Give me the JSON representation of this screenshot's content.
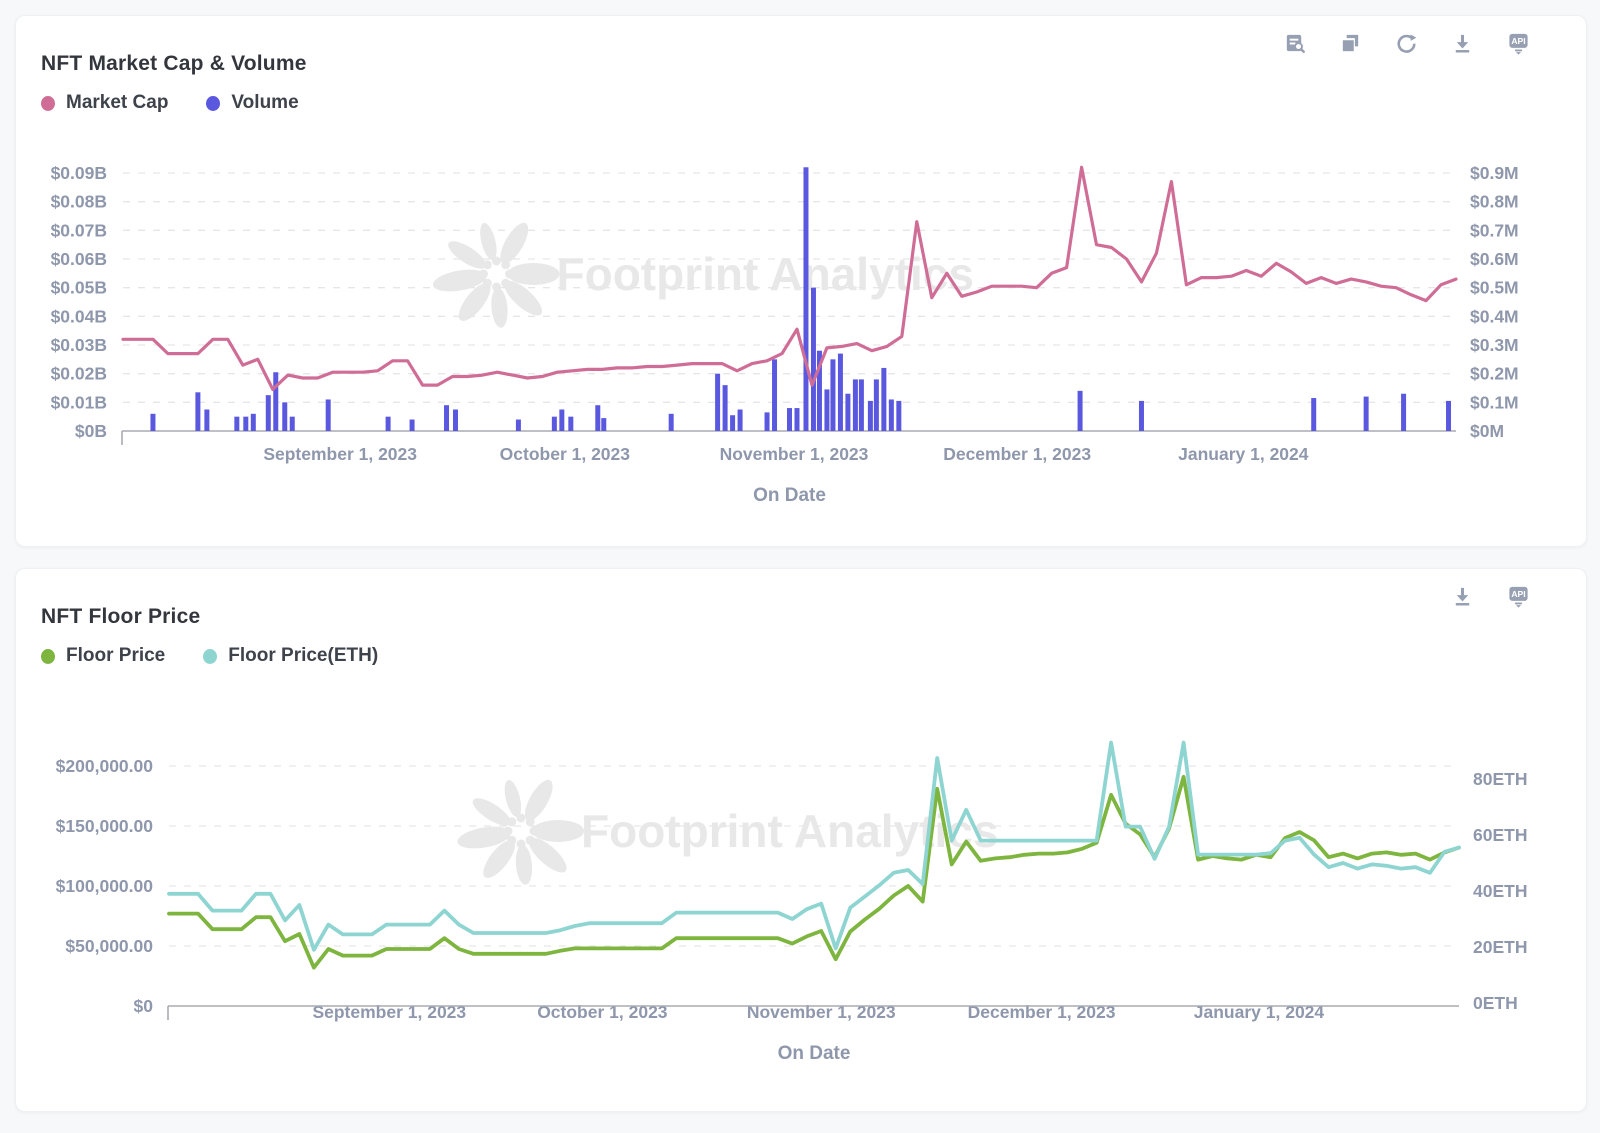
{
  "watermark": {
    "text": "Footprint Analytics"
  },
  "toolbar": {
    "api_label": "API",
    "chart1_icons": [
      "query-data",
      "duplicate",
      "refresh",
      "download",
      "api"
    ],
    "chart2_icons": [
      "download",
      "api"
    ]
  },
  "colors": {
    "market_cap": "#cf6d96",
    "volume": "#5b58e0",
    "floor_price": "#7db53f",
    "floor_price_eth": "#8ed5d2",
    "axis_text": "#8e97ab",
    "grid": "#e6e6e6",
    "watermark": "#e8e8e8"
  },
  "charts": [
    {
      "title": "NFT Market Cap & Volume",
      "legend": [
        {
          "label": "Market Cap",
          "color": "#cf6d96"
        },
        {
          "label": "Volume",
          "color": "#5b58e0"
        }
      ]
    },
    {
      "title": "NFT Floor Price",
      "legend": [
        {
          "label": "Floor Price",
          "color": "#7db53f"
        },
        {
          "label": "Floor Price(ETH)",
          "color": "#8ed5d2"
        }
      ]
    }
  ],
  "chart_data": [
    {
      "type": "line+bar",
      "title": "NFT Market Cap & Volume",
      "xlabel": "On Date",
      "n_points": 90,
      "x_ticks": [
        {
          "i": 14.5,
          "label": "September 1, 2023"
        },
        {
          "i": 29.5,
          "label": "October 1, 2023"
        },
        {
          "i": 44.8,
          "label": "November 1, 2023"
        },
        {
          "i": 59.7,
          "label": "December 1, 2023"
        },
        {
          "i": 74.8,
          "label": "January 1, 2024"
        }
      ],
      "left_axis": {
        "unit": "USD billions",
        "range": [
          0,
          0.09
        ],
        "ticks": [
          {
            "v": 0.09,
            "label": "$0.09B"
          },
          {
            "v": 0.08,
            "label": "$0.08B"
          },
          {
            "v": 0.07,
            "label": "$0.07B"
          },
          {
            "v": 0.06,
            "label": "$0.06B"
          },
          {
            "v": 0.05,
            "label": "$0.05B"
          },
          {
            "v": 0.04,
            "label": "$0.04B"
          },
          {
            "v": 0.03,
            "label": "$0.03B"
          },
          {
            "v": 0.02,
            "label": "$0.02B"
          },
          {
            "v": 0.01,
            "label": "$0.01B"
          },
          {
            "v": 0,
            "label": "$0B"
          }
        ]
      },
      "right_axis": {
        "unit": "USD millions",
        "range": [
          0,
          0.9
        ],
        "ticks": [
          {
            "v": 0.9,
            "label": "$0.9M"
          },
          {
            "v": 0.8,
            "label": "$0.8M"
          },
          {
            "v": 0.7,
            "label": "$0.7M"
          },
          {
            "v": 0.6,
            "label": "$0.6M"
          },
          {
            "v": 0.5,
            "label": "$0.5M"
          },
          {
            "v": 0.4,
            "label": "$0.4M"
          },
          {
            "v": 0.3,
            "label": "$0.3M"
          },
          {
            "v": 0.2,
            "label": "$0.2M"
          },
          {
            "v": 0.1,
            "label": "$0.1M"
          },
          {
            "v": 0,
            "label": "$0M"
          }
        ]
      },
      "series": [
        {
          "name": "Market Cap",
          "type": "line",
          "axis": "left",
          "color": "#cf6d96",
          "values": [
            0.032,
            0.032,
            0.032,
            0.027,
            0.027,
            0.027,
            0.032,
            0.032,
            0.023,
            0.025,
            0.0145,
            0.0195,
            0.0185,
            0.0185,
            0.0205,
            0.0205,
            0.0205,
            0.021,
            0.0245,
            0.0245,
            0.016,
            0.016,
            0.019,
            0.019,
            0.0195,
            0.0205,
            0.0195,
            0.0185,
            0.019,
            0.0205,
            0.021,
            0.0215,
            0.0215,
            0.022,
            0.022,
            0.0225,
            0.0225,
            0.023,
            0.0235,
            0.0235,
            0.0235,
            0.021,
            0.0235,
            0.0245,
            0.027,
            0.0355,
            0.016,
            0.029,
            0.0295,
            0.0305,
            0.028,
            0.0295,
            0.033,
            0.073,
            0.0465,
            0.055,
            0.047,
            0.0485,
            0.0505,
            0.0505,
            0.0505,
            0.05,
            0.055,
            0.057,
            0.092,
            0.065,
            0.064,
            0.06,
            0.052,
            0.062,
            0.087,
            0.051,
            0.0535,
            0.0535,
            0.054,
            0.056,
            0.054,
            0.0585,
            0.0555,
            0.0515,
            0.0535,
            0.0515,
            0.053,
            0.052,
            0.0505,
            0.05,
            0.0475,
            0.0455,
            0.051,
            0.053
          ]
        },
        {
          "name": "Volume",
          "type": "bar",
          "axis": "right",
          "color": "#5b58e0",
          "points": [
            [
              2.0,
              0.06
            ],
            [
              5.0,
              0.135
            ],
            [
              5.6,
              0.075
            ],
            [
              7.6,
              0.05
            ],
            [
              8.2,
              0.05
            ],
            [
              8.7,
              0.06
            ],
            [
              9.7,
              0.125
            ],
            [
              10.2,
              0.205
            ],
            [
              10.8,
              0.1
            ],
            [
              11.3,
              0.05
            ],
            [
              13.7,
              0.11
            ],
            [
              17.7,
              0.05
            ],
            [
              19.3,
              0.04
            ],
            [
              21.6,
              0.09
            ],
            [
              22.2,
              0.075
            ],
            [
              26.4,
              0.04
            ],
            [
              28.8,
              0.05
            ],
            [
              29.3,
              0.075
            ],
            [
              29.9,
              0.05
            ],
            [
              31.7,
              0.09
            ],
            [
              32.1,
              0.045
            ],
            [
              36.6,
              0.06
            ],
            [
              39.7,
              0.2
            ],
            [
              40.2,
              0.16
            ],
            [
              40.7,
              0.055
            ],
            [
              41.2,
              0.075
            ],
            [
              43.0,
              0.065
            ],
            [
              43.5,
              0.25
            ],
            [
              44.5,
              0.08
            ],
            [
              45.0,
              0.08
            ],
            [
              45.6,
              0.92
            ],
            [
              46.1,
              0.5
            ],
            [
              46.5,
              0.28
            ],
            [
              47.0,
              0.145
            ],
            [
              47.4,
              0.25
            ],
            [
              47.9,
              0.27
            ],
            [
              48.4,
              0.13
            ],
            [
              48.9,
              0.18
            ],
            [
              49.3,
              0.18
            ],
            [
              49.9,
              0.105
            ],
            [
              50.3,
              0.18
            ],
            [
              50.8,
              0.22
            ],
            [
              51.3,
              0.11
            ],
            [
              51.8,
              0.105
            ],
            [
              63.9,
              0.14
            ],
            [
              68.0,
              0.105
            ],
            [
              79.5,
              0.115
            ],
            [
              83.0,
              0.12
            ],
            [
              85.5,
              0.13
            ],
            [
              88.5,
              0.105
            ]
          ]
        }
      ]
    },
    {
      "type": "line",
      "title": "NFT Floor Price",
      "xlabel": "On Date",
      "n_points": 90,
      "x_ticks": [
        {
          "i": 15.2,
          "label": "September 1, 2023"
        },
        {
          "i": 29.9,
          "label": "October 1, 2023"
        },
        {
          "i": 45.0,
          "label": "November 1, 2023"
        },
        {
          "i": 60.2,
          "label": "December 1, 2023"
        },
        {
          "i": 75.2,
          "label": "January 1, 2024"
        }
      ],
      "left_axis": {
        "unit": "USD",
        "range": [
          0,
          250000
        ],
        "ticks": [
          {
            "v": 200000,
            "label": "$200,000.00"
          },
          {
            "v": 150000,
            "label": "$150,000.00"
          },
          {
            "v": 100000,
            "label": "$100,000.00"
          },
          {
            "v": 50000,
            "label": "$50,000.00"
          },
          {
            "v": 0,
            "label": "$0"
          }
        ]
      },
      "right_axis": {
        "unit": "ETH",
        "range": [
          0,
          110
        ],
        "ticks": [
          {
            "v": 80,
            "label": "80ETH"
          },
          {
            "v": 60,
            "label": "60ETH"
          },
          {
            "v": 40,
            "label": "40ETH"
          },
          {
            "v": 20,
            "label": "20ETH"
          },
          {
            "v": 0,
            "label": "0ETH"
          }
        ]
      },
      "series": [
        {
          "name": "Floor Price",
          "type": "line",
          "axis": "left",
          "color": "#7db53f",
          "values": [
            77000,
            77000,
            77000,
            64000,
            64000,
            64000,
            74000,
            74000,
            54000,
            60000,
            32000,
            47500,
            42000,
            42000,
            42000,
            47500,
            47500,
            47500,
            47500,
            56500,
            47500,
            43500,
            43500,
            43500,
            43500,
            43500,
            43500,
            46000,
            48000,
            48000,
            48000,
            48000,
            48000,
            48000,
            48000,
            56500,
            56500,
            56500,
            56500,
            56500,
            56500,
            56500,
            56500,
            52000,
            58000,
            62500,
            39000,
            62000,
            72000,
            81000,
            92000,
            100000,
            87000,
            181000,
            118000,
            137000,
            121000,
            123000,
            124000,
            126000,
            127000,
            127000,
            128000,
            131000,
            136000,
            176000,
            152000,
            143000,
            124000,
            148000,
            191000,
            122000,
            125000,
            123000,
            122000,
            126000,
            124000,
            140000,
            145000,
            138000,
            124000,
            127000,
            123000,
            127000,
            128000,
            126000,
            127000,
            122000,
            128000,
            132000
          ]
        },
        {
          "name": "Floor Price(ETH)",
          "type": "line",
          "axis": "right",
          "color": "#8ed5d2",
          "values": [
            39,
            39,
            39,
            33,
            33,
            33,
            39,
            39,
            29.5,
            35,
            19,
            28,
            24.5,
            24.5,
            24.5,
            28,
            28,
            28,
            28,
            33,
            28,
            25,
            25,
            25,
            25,
            25,
            25,
            26,
            27.5,
            28.5,
            28.5,
            28.5,
            28.5,
            28.5,
            28.5,
            32.3,
            32.3,
            32.3,
            32.3,
            32.3,
            32.3,
            32.3,
            32.3,
            30,
            33.5,
            35.5,
            19.5,
            34,
            38,
            42,
            46.5,
            47.5,
            42.5,
            87.5,
            58,
            69,
            58,
            58,
            58,
            58,
            58,
            58,
            58,
            58,
            58,
            93,
            63,
            63,
            51.5,
            63,
            93,
            53,
            53,
            53,
            53,
            53,
            53.5,
            58,
            59,
            53,
            48.5,
            50,
            48,
            49.5,
            49,
            48,
            48.5,
            46.5,
            54,
            55.5
          ]
        }
      ]
    }
  ]
}
